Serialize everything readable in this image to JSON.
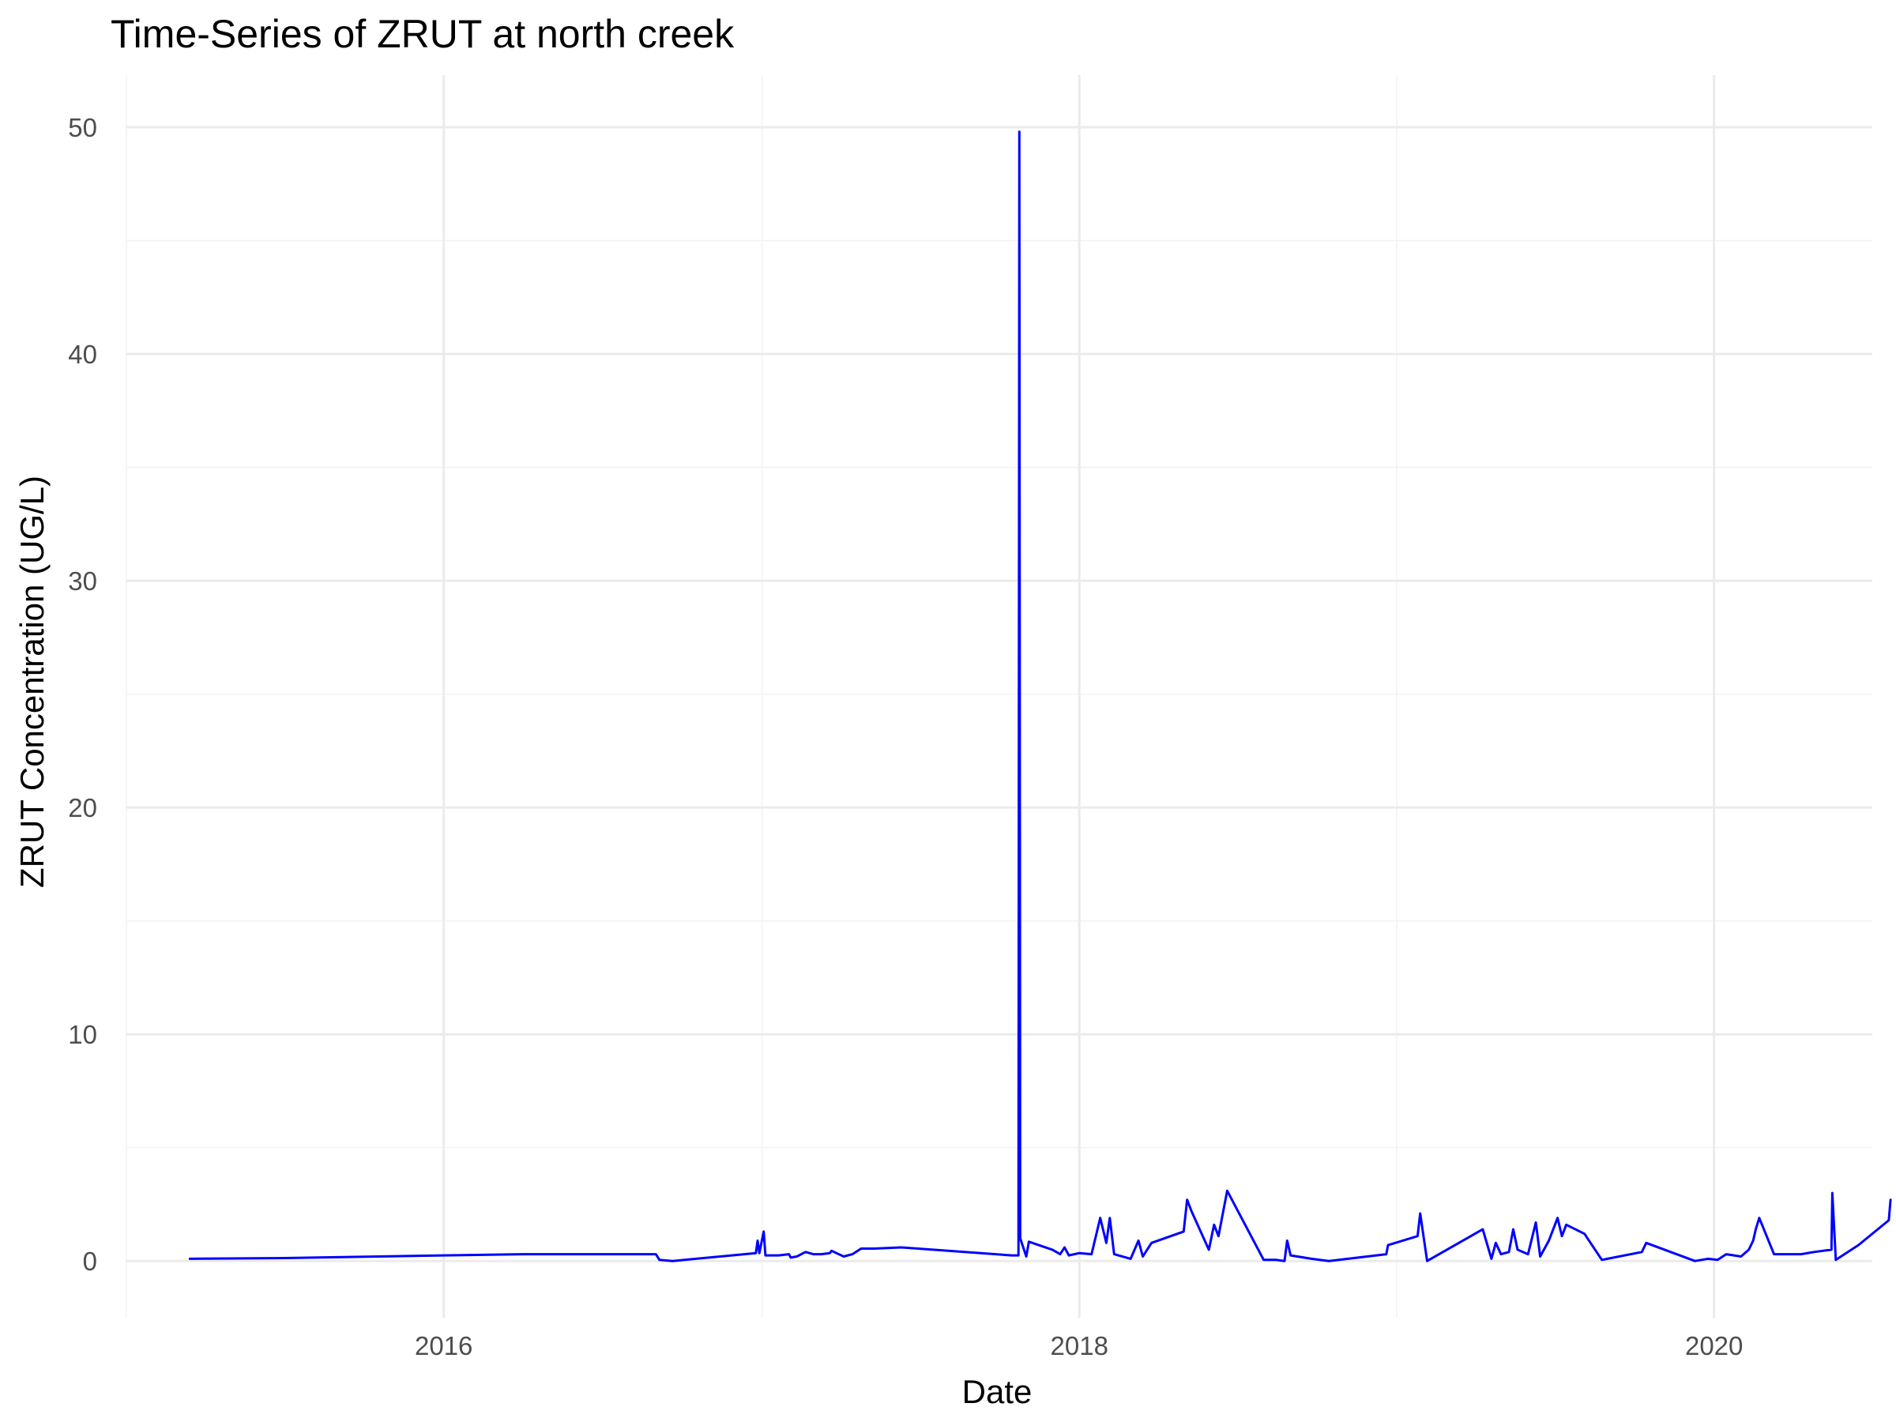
{
  "chart_data": {
    "type": "line",
    "title": "Time-Series of ZRUT at north creek",
    "xlabel": "Date",
    "ylabel": "ZRUT Concentration (UG/L)",
    "x_ticks": [
      "2016",
      "2018",
      "2020"
    ],
    "y_ticks": [
      "0",
      "10",
      "20",
      "30",
      "40",
      "50"
    ],
    "xlim": [
      "2015-01-01",
      "2020-07-01"
    ],
    "ylim": [
      -2.5,
      52.3
    ],
    "grid": true,
    "colors": {
      "line": "#0000ff"
    },
    "series": [
      {
        "points": [
          [
            "2015-03-15",
            0.1
          ],
          [
            "2015-07-01",
            0.13
          ],
          [
            "2016-01-01",
            0.25
          ],
          [
            "2016-04-01",
            0.3
          ],
          [
            "2016-09-01",
            0.3
          ],
          [
            "2016-09-05",
            0.05
          ],
          [
            "2016-09-20",
            0.0
          ],
          [
            "2016-12-25",
            0.35
          ],
          [
            "2016-12-27",
            0.9
          ],
          [
            "2016-12-29",
            0.35
          ],
          [
            "2017-01-03",
            1.3
          ],
          [
            "2017-01-05",
            0.25
          ],
          [
            "2017-01-20",
            0.25
          ],
          [
            "2017-02-01",
            0.3
          ],
          [
            "2017-02-03",
            0.15
          ],
          [
            "2017-02-10",
            0.2
          ],
          [
            "2017-02-20",
            0.4
          ],
          [
            "2017-03-01",
            0.3
          ],
          [
            "2017-03-10",
            0.3
          ],
          [
            "2017-03-20",
            0.35
          ],
          [
            "2017-03-22",
            0.45
          ],
          [
            "2017-04-05",
            0.2
          ],
          [
            "2017-04-15",
            0.3
          ],
          [
            "2017-04-25",
            0.55
          ],
          [
            "2017-05-10",
            0.55
          ],
          [
            "2017-06-10",
            0.6
          ],
          [
            "2017-10-15",
            0.25
          ],
          [
            "2017-10-23",
            0.25
          ],
          [
            "2017-10-24",
            49.8
          ],
          [
            "2017-10-25",
            1.0
          ],
          [
            "2017-11-01",
            0.2
          ],
          [
            "2017-11-04",
            0.85
          ],
          [
            "2017-12-01",
            0.5
          ],
          [
            "2017-12-10",
            0.3
          ],
          [
            "2017-12-15",
            0.6
          ],
          [
            "2017-12-20",
            0.25
          ],
          [
            "2018-01-01",
            0.35
          ],
          [
            "2018-01-15",
            0.3
          ],
          [
            "2018-01-25",
            1.9
          ],
          [
            "2018-02-01",
            0.8
          ],
          [
            "2018-02-05",
            1.9
          ],
          [
            "2018-02-10",
            0.3
          ],
          [
            "2018-03-01",
            0.1
          ],
          [
            "2018-03-10",
            0.9
          ],
          [
            "2018-03-15",
            0.2
          ],
          [
            "2018-03-25",
            0.8
          ],
          [
            "2018-05-01",
            1.3
          ],
          [
            "2018-05-05",
            2.7
          ],
          [
            "2018-05-10",
            2.2
          ],
          [
            "2018-05-30",
            0.5
          ],
          [
            "2018-06-05",
            1.6
          ],
          [
            "2018-06-10",
            1.1
          ],
          [
            "2018-06-20",
            3.1
          ],
          [
            "2018-08-01",
            0.05
          ],
          [
            "2018-08-15",
            0.05
          ],
          [
            "2018-08-25",
            0.0
          ],
          [
            "2018-08-28",
            0.9
          ],
          [
            "2018-09-01",
            0.25
          ],
          [
            "2018-09-25",
            0.1
          ],
          [
            "2018-10-15",
            0.0
          ],
          [
            "2018-12-20",
            0.3
          ],
          [
            "2018-12-22",
            0.7
          ],
          [
            "2019-01-25",
            1.1
          ],
          [
            "2019-01-28",
            2.1
          ],
          [
            "2019-02-05",
            0.0
          ],
          [
            "2019-04-10",
            1.4
          ],
          [
            "2019-04-20",
            0.1
          ],
          [
            "2019-04-25",
            0.8
          ],
          [
            "2019-05-01",
            0.3
          ],
          [
            "2019-05-10",
            0.4
          ],
          [
            "2019-05-15",
            1.4
          ],
          [
            "2019-05-20",
            0.5
          ],
          [
            "2019-06-01",
            0.3
          ],
          [
            "2019-06-10",
            1.7
          ],
          [
            "2019-06-15",
            0.2
          ],
          [
            "2019-06-25",
            0.9
          ],
          [
            "2019-07-01",
            1.5
          ],
          [
            "2019-07-05",
            1.9
          ],
          [
            "2019-07-10",
            1.1
          ],
          [
            "2019-07-15",
            1.6
          ],
          [
            "2019-08-05",
            1.2
          ],
          [
            "2019-08-25",
            0.05
          ],
          [
            "2019-10-10",
            0.4
          ],
          [
            "2019-10-15",
            0.8
          ],
          [
            "2019-12-10",
            0.0
          ],
          [
            "2019-12-25",
            0.1
          ],
          [
            "2020-01-05",
            0.05
          ],
          [
            "2020-01-15",
            0.3
          ],
          [
            "2020-02-01",
            0.2
          ],
          [
            "2020-02-10",
            0.5
          ],
          [
            "2020-02-15",
            0.9
          ],
          [
            "2020-02-18",
            1.4
          ],
          [
            "2020-02-22",
            1.9
          ],
          [
            "2020-03-10",
            0.3
          ],
          [
            "2020-04-10",
            0.3
          ],
          [
            "2020-04-25",
            0.4
          ],
          [
            "2020-05-15",
            0.5
          ],
          [
            "2020-05-16",
            3.0
          ],
          [
            "2020-05-20",
            0.05
          ],
          [
            "2020-06-15",
            0.7
          ],
          [
            "2020-07-20",
            1.8
          ],
          [
            "2020-07-22",
            2.7
          ]
        ]
      }
    ]
  }
}
